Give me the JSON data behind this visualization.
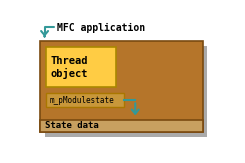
{
  "bg_color": "#ffffff",
  "outer_box_color": "#b5752a",
  "outer_box_shadow_color": "#aaaaaa",
  "thread_box_color": "#ffcc44",
  "thread_box_edge": "#aa8800",
  "module_box_color": "#c8973a",
  "module_box_edge": "#aa7700",
  "state_bar_color": "#c8a060",
  "outer_box_edge": "#7a4a10",
  "arrow_color": "#339999",
  "mfc_label": "MFC application",
  "mfc_label_color": "#000000",
  "thread_label": "Thread\nobject",
  "module_label": "m_pModulestate",
  "state_label": "State data"
}
